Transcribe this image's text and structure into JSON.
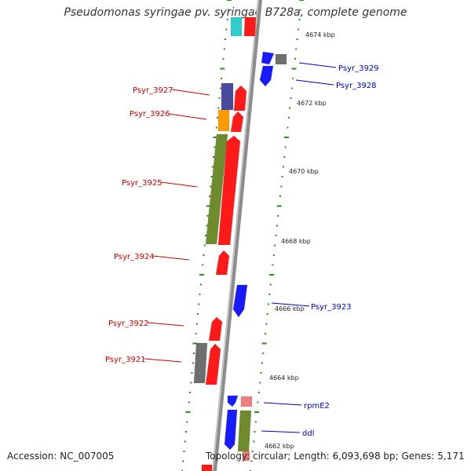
{
  "title": "Pseudomonas syringae pv. syringae B728a, complete genome",
  "footer": {
    "accession": "Accession: NC_007005",
    "summary": "Topology: circular; Length: 6,093,698 bp; Genes: 5,171"
  },
  "colors": {
    "backbone": "#8c8c8c",
    "tick": "#2e8b22",
    "label_red": "#cc0000",
    "label_blue": "#0000cc",
    "cds_red": "#ff1a1a",
    "cds_blue": "#1a1aff",
    "cds_olive": "#6e8b2e",
    "cds_orange": "#ff9900",
    "cds_purple": "#4b4b9e",
    "cds_gray": "#6e6e6e",
    "cds_cyan": "#33cccc",
    "cds_pink": "#f08080"
  },
  "kbp_labels": [
    "4674 kbp",
    "4672 kbp",
    "4670 kbp",
    "4668 kbp",
    "4666 kbp",
    "4664 kbp",
    "4662 kbp"
  ],
  "labels_left": [
    "Psyr_3927",
    "Psyr_3926",
    "Psyr_3925",
    "Psyr_3924",
    "Psyr_3922",
    "Psyr_3921"
  ],
  "labels_right": [
    "Psyr_3929",
    "Psyr_3928",
    "Psyr_3923",
    "rpmE2",
    "ddl"
  ]
}
